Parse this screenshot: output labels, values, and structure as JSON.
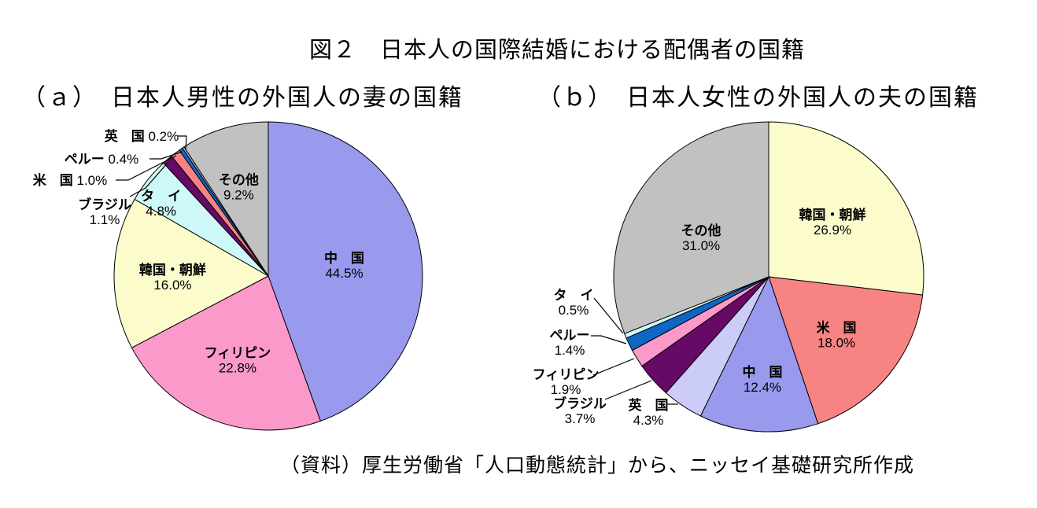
{
  "figure": {
    "title": "図２　日本人の国際結婚における配偶者の国籍",
    "caption": "（資料）厚生労働省「人口動態統計」から、ニッセイ基礎研究所作成"
  },
  "chart_data": [
    {
      "type": "pie",
      "title": "（ａ）　日本人男性の外国人の妻の国籍",
      "unit": "%",
      "start_angle": "12-oclock",
      "direction": "clockwise",
      "legend": "none",
      "slices": [
        {
          "label": "中国",
          "value": 44.5,
          "lines": [
            "中　国",
            "44.5%"
          ],
          "color": "#9999EE"
        },
        {
          "label": "フィリピン",
          "value": 22.8,
          "lines": [
            "フィリピン",
            "22.8%"
          ],
          "color": "#FB99CB"
        },
        {
          "label": "韓国・朝鮮",
          "value": 16.0,
          "lines": [
            "韓国・朝鮮",
            "16.0%"
          ],
          "color": "#FCFBCC"
        },
        {
          "label": "タイ",
          "value": 4.8,
          "lines": [
            "タ　イ",
            "4.8%"
          ],
          "color": "#CFF8F9"
        },
        {
          "label": "ブラジル",
          "value": 1.1,
          "lines": [
            "ブラジル",
            "1.1%"
          ],
          "color": "#660A66"
        },
        {
          "label": "米国",
          "value": 1.0,
          "lines": [
            "米　国 1.0%"
          ],
          "color": "#F88383"
        },
        {
          "label": "ペルー",
          "value": 0.4,
          "lines": [
            "ペルー 0.4%"
          ],
          "color": "#0F66C4"
        },
        {
          "label": "英国",
          "value": 0.2,
          "lines": [
            "英　国 0.2%"
          ],
          "color": "#CCCCF8"
        },
        {
          "label": "その他",
          "value": 9.2,
          "lines": [
            "その他",
            "9.2%"
          ],
          "color": "#C1C1C1"
        }
      ]
    },
    {
      "type": "pie",
      "title": "（ｂ）　日本人女性の外国人の夫の国籍",
      "unit": "%",
      "start_angle": "12-oclock",
      "direction": "clockwise",
      "legend": "none",
      "slices": [
        {
          "label": "韓国・朝鮮",
          "value": 26.9,
          "lines": [
            "韓国・朝鮮",
            "26.9%"
          ],
          "color": "#FCFBCC"
        },
        {
          "label": "米国",
          "value": 18.0,
          "lines": [
            "米　国",
            "18.0%"
          ],
          "color": "#F88383"
        },
        {
          "label": "中国",
          "value": 12.4,
          "lines": [
            "中　国",
            "12.4%"
          ],
          "color": "#9999EE"
        },
        {
          "label": "英国",
          "value": 4.3,
          "lines": [
            "英　国",
            "4.3%"
          ],
          "color": "#CCCCF8"
        },
        {
          "label": "ブラジル",
          "value": 3.7,
          "lines": [
            "ブラジル",
            "3.7%"
          ],
          "color": "#660A66"
        },
        {
          "label": "フィリピン",
          "value": 1.9,
          "lines": [
            "フィリピン",
            "1.9%"
          ],
          "color": "#FB99CB"
        },
        {
          "label": "ペルー",
          "value": 1.4,
          "lines": [
            "ペルー",
            "1.4%"
          ],
          "color": "#0F66C4"
        },
        {
          "label": "タイ",
          "value": 0.5,
          "lines": [
            "タ　イ",
            "0.5%"
          ],
          "color": "#CFF8F9"
        },
        {
          "label": "その他",
          "value": 31.0,
          "lines": [
            "その他",
            "31.0%"
          ],
          "color": "#C1C1C1"
        }
      ]
    }
  ]
}
